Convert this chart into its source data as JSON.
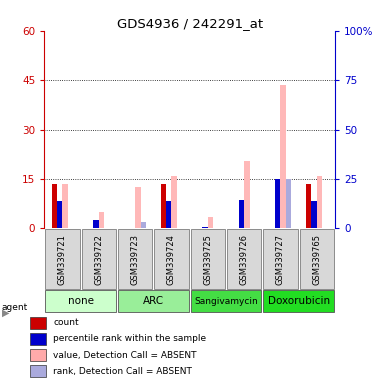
{
  "title": "GDS4936 / 242291_at",
  "samples": [
    "GSM339721",
    "GSM339722",
    "GSM339723",
    "GSM339724",
    "GSM339725",
    "GSM339726",
    "GSM339727",
    "GSM339765"
  ],
  "agent_groups": [
    {
      "label": "none",
      "color": "#ccffcc",
      "indices": [
        0,
        1
      ]
    },
    {
      "label": "ARC",
      "color": "#99ee99",
      "indices": [
        2,
        3
      ]
    },
    {
      "label": "Sangivamycin",
      "color": "#44dd44",
      "indices": [
        4,
        5
      ]
    },
    {
      "label": "Doxorubicin",
      "color": "#22dd22",
      "indices": [
        6,
        7
      ]
    }
  ],
  "count_values": [
    13.5,
    0,
    0,
    13.5,
    0,
    0,
    0,
    13.5
  ],
  "percentile_rank_left": [
    8.4,
    2.7,
    0,
    8.4,
    0.6,
    8.7,
    15.0,
    8.4
  ],
  "absent_value_values": [
    13.5,
    5.0,
    12.5,
    16.0,
    3.5,
    20.5,
    43.5,
    16.0
  ],
  "absent_rank_left": [
    0,
    0,
    2.1,
    0,
    0,
    0,
    15.0,
    0
  ],
  "ylim_left": [
    0,
    60
  ],
  "ylim_right": [
    0,
    100
  ],
  "yticks_left": [
    0,
    15,
    30,
    45,
    60
  ],
  "yticks_right": [
    0,
    25,
    50,
    75,
    100
  ],
  "yticklabels_right": [
    "0",
    "25",
    "50",
    "75",
    "100%"
  ],
  "left_axis_color": "#cc0000",
  "right_axis_color": "#0000cc",
  "bar_width": 0.15,
  "legend_items": [
    {
      "color": "#cc0000",
      "label": "count",
      "marker": "s"
    },
    {
      "color": "#0000cc",
      "label": "percentile rank within the sample",
      "marker": "s"
    },
    {
      "color": "#ffaaaa",
      "label": "value, Detection Call = ABSENT",
      "marker": "s"
    },
    {
      "color": "#aaaadd",
      "label": "rank, Detection Call = ABSENT",
      "marker": "s"
    }
  ],
  "agent_row_color_none": "#ccffcc",
  "agent_row_color_arc": "#99ee99",
  "agent_row_color_sangi": "#44dd44",
  "agent_row_color_doxo": "#22dd22",
  "main_axes": [
    0.115,
    0.405,
    0.755,
    0.515
  ],
  "labels_axes": [
    0.115,
    0.245,
    0.755,
    0.16
  ],
  "agents_axes": [
    0.115,
    0.185,
    0.755,
    0.06
  ],
  "legend_axes": [
    0.06,
    0.0,
    0.92,
    0.175
  ]
}
